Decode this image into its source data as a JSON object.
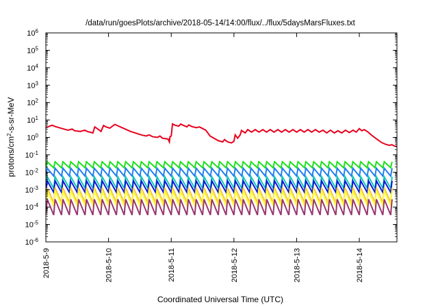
{
  "chart_data": {
    "type": "line",
    "title": "/data/run/goesPlots/archive/2018-05-14/14:00/flux/../flux/5daysMarsFluxes.txt",
    "xlabel": "Coordinated Universal Time (UTC)",
    "ylabel_parts": {
      "base": "protons/cm",
      "sup": "2",
      "rest": "-s-sr-MeV"
    },
    "yscale": "log",
    "ylim_exp": [
      -6,
      6
    ],
    "ytick_exponents": [
      -6,
      -5,
      -4,
      -3,
      -2,
      -1,
      0,
      1,
      2,
      3,
      4,
      5,
      6
    ],
    "ytick_base": "10",
    "xlim_days": [
      0,
      5.6
    ],
    "xtick_labels": [
      "2018-5-9",
      "2018-5-10",
      "2018-5-11",
      "2018-5-12",
      "2018-5-13",
      "2018-5-14"
    ],
    "xtick_days": [
      0,
      1,
      2,
      3,
      4,
      5
    ],
    "grid": false,
    "legend": "none",
    "series": [
      {
        "color": "#e8001c",
        "points": [
          [
            0.0,
            3.6
          ],
          [
            0.1,
            5.0
          ],
          [
            0.15,
            4.2
          ],
          [
            0.25,
            3.3
          ],
          [
            0.35,
            2.6
          ],
          [
            0.42,
            3.0
          ],
          [
            0.46,
            2.4
          ],
          [
            0.55,
            2.2
          ],
          [
            0.62,
            2.6
          ],
          [
            0.66,
            2.2
          ],
          [
            0.75,
            1.8
          ],
          [
            0.78,
            4.0
          ],
          [
            0.82,
            3.2
          ],
          [
            0.88,
            2.2
          ],
          [
            0.92,
            4.8
          ],
          [
            0.96,
            4.0
          ],
          [
            1.02,
            3.4
          ],
          [
            1.1,
            5.6
          ],
          [
            1.15,
            4.6
          ],
          [
            1.25,
            3.2
          ],
          [
            1.35,
            2.2
          ],
          [
            1.45,
            1.7
          ],
          [
            1.52,
            1.4
          ],
          [
            1.6,
            1.2
          ],
          [
            1.65,
            1.4
          ],
          [
            1.7,
            1.1
          ],
          [
            1.78,
            1.0
          ],
          [
            1.82,
            1.2
          ],
          [
            1.86,
            0.9
          ],
          [
            1.95,
            0.8
          ],
          [
            1.97,
            0.55
          ],
          [
            1.98,
            1.1
          ],
          [
            2.0,
            1.2
          ],
          [
            2.02,
            6.0
          ],
          [
            2.06,
            5.0
          ],
          [
            2.12,
            4.4
          ],
          [
            2.15,
            5.8
          ],
          [
            2.2,
            4.8
          ],
          [
            2.25,
            4.0
          ],
          [
            2.28,
            5.2
          ],
          [
            2.33,
            4.2
          ],
          [
            2.4,
            3.6
          ],
          [
            2.45,
            4.0
          ],
          [
            2.55,
            2.6
          ],
          [
            2.62,
            1.2
          ],
          [
            2.68,
            0.9
          ],
          [
            2.75,
            0.65
          ],
          [
            2.82,
            0.55
          ],
          [
            2.85,
            0.75
          ],
          [
            2.9,
            0.55
          ],
          [
            2.96,
            0.48
          ],
          [
            3.0,
            0.6
          ],
          [
            3.02,
            1.4
          ],
          [
            3.06,
            0.9
          ],
          [
            3.1,
            1.4
          ],
          [
            3.12,
            2.5
          ],
          [
            3.18,
            1.8
          ],
          [
            3.22,
            2.8
          ],
          [
            3.28,
            2.0
          ],
          [
            3.34,
            2.8
          ],
          [
            3.4,
            2.0
          ],
          [
            3.46,
            2.8
          ],
          [
            3.52,
            2.0
          ],
          [
            3.58,
            2.8
          ],
          [
            3.64,
            2.0
          ],
          [
            3.7,
            2.8
          ],
          [
            3.76,
            2.0
          ],
          [
            3.82,
            2.8
          ],
          [
            3.88,
            2.0
          ],
          [
            3.94,
            2.8
          ],
          [
            4.0,
            2.0
          ],
          [
            4.06,
            2.8
          ],
          [
            4.12,
            2.0
          ],
          [
            4.18,
            2.8
          ],
          [
            4.24,
            2.0
          ],
          [
            4.3,
            2.8
          ],
          [
            4.36,
            2.0
          ],
          [
            4.42,
            2.6
          ],
          [
            4.48,
            1.8
          ],
          [
            4.54,
            2.6
          ],
          [
            4.6,
            1.8
          ],
          [
            4.66,
            2.4
          ],
          [
            4.72,
            1.8
          ],
          [
            4.78,
            2.6
          ],
          [
            4.84,
            1.9
          ],
          [
            4.9,
            2.6
          ],
          [
            4.95,
            2.0
          ],
          [
            5.0,
            3.2
          ],
          [
            5.04,
            2.4
          ],
          [
            5.08,
            2.8
          ],
          [
            5.14,
            2.0
          ],
          [
            5.2,
            1.3
          ],
          [
            5.26,
            0.9
          ],
          [
            5.3,
            0.7
          ],
          [
            5.36,
            0.5
          ],
          [
            5.42,
            0.4
          ],
          [
            5.48,
            0.35
          ],
          [
            5.52,
            0.38
          ],
          [
            5.56,
            0.32
          ],
          [
            5.6,
            0.3
          ]
        ]
      },
      {
        "color": "#1be01b",
        "peak": 0.04,
        "trough": 0.018
      },
      {
        "color": "#1e7ef0",
        "peak": 0.017,
        "trough": 0.006
      },
      {
        "color": "#13c8b4",
        "peak": 0.0055,
        "trough": 0.0012
      },
      {
        "color": "#0a18d8",
        "peak": 0.0032,
        "trough": 0.0007
      },
      {
        "color": "#f2c64a",
        "peak": 0.0013,
        "trough": 0.00018
      },
      {
        "color": "#ffff3a",
        "peak": 0.0008,
        "trough": 0.00012
      },
      {
        "color": "#98366e",
        "peak": 0.00028,
        "trough": 3.5e-05
      }
    ]
  }
}
